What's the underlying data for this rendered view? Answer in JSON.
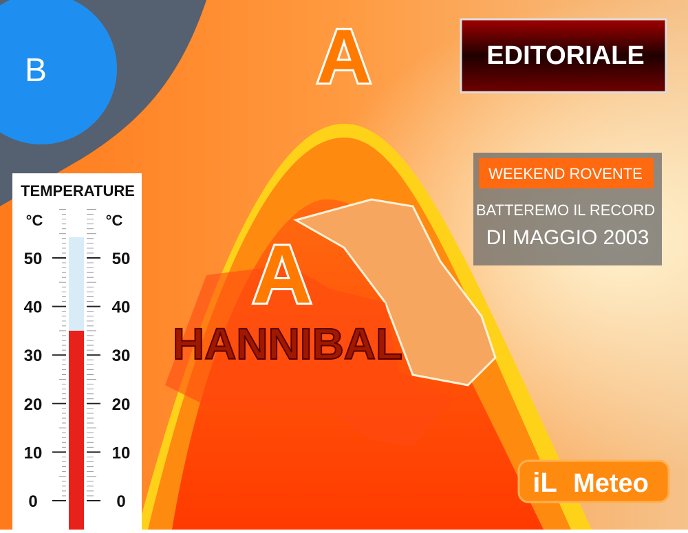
{
  "map": {
    "lows": [
      "B"
    ],
    "highs": [
      "A",
      "A"
    ],
    "name": "HANNIBAL"
  },
  "badge": "EDITORIALE",
  "news_box": {
    "tag": "WEEKEND ROVENTE",
    "line1": "BATTEREMO IL RECORD",
    "line2": "DI MAGGIO 2003"
  },
  "thermometer": {
    "title": "TEMPERATURE",
    "unit": "°C",
    "scale": [
      50,
      40,
      30,
      20,
      10,
      0
    ],
    "level": 35
  },
  "logo": {
    "prefix": "iL",
    "word": "Meteo"
  }
}
